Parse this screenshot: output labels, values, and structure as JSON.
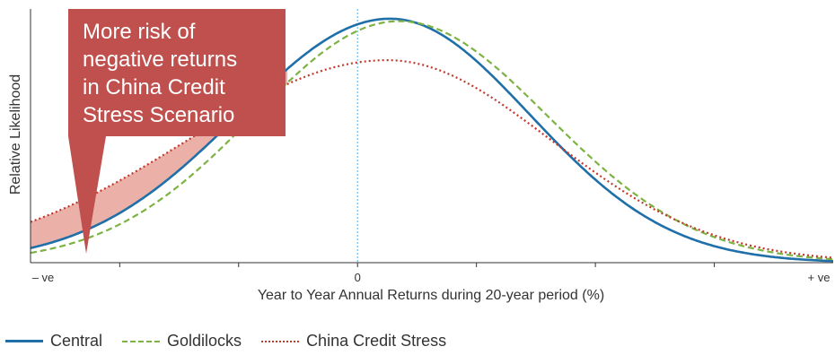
{
  "chart_data": {
    "type": "line",
    "xlabel": "Year to Year Annual Returns during 20-year period (%)",
    "ylabel": "Relative Likelihood",
    "x_tick_labels": [
      "– ve",
      "0",
      "+ ve"
    ],
    "callout": {
      "lines": [
        "More risk of",
        "negative returns",
        "in China Credit",
        "Stress Scenario"
      ],
      "color": "#c0504d"
    },
    "shaded_region_color": "#e8a39a",
    "series": [
      {
        "name": "Central",
        "color": "#1f6fa8",
        "style": "solid",
        "peak": 1.0,
        "mean": 0.55,
        "sd_left": 2.55,
        "sd_right": 2.35
      },
      {
        "name": "Goldilocks",
        "color": "#7cb342",
        "style": "dashed",
        "peak": 0.99,
        "mean": 0.7,
        "sd_left": 2.45,
        "sd_right": 2.5
      },
      {
        "name": "China Credit Stress",
        "color": "#c0392b",
        "style": "dotted",
        "peak": 0.83,
        "mean": 0.5,
        "sd_left": 3.35,
        "sd_right": 2.75
      }
    ],
    "xlim": [
      -5.5,
      8.0
    ],
    "ylim": [
      0,
      1.04
    ],
    "zero_line": true,
    "grid": false,
    "legend_placement": "bottom-left"
  }
}
